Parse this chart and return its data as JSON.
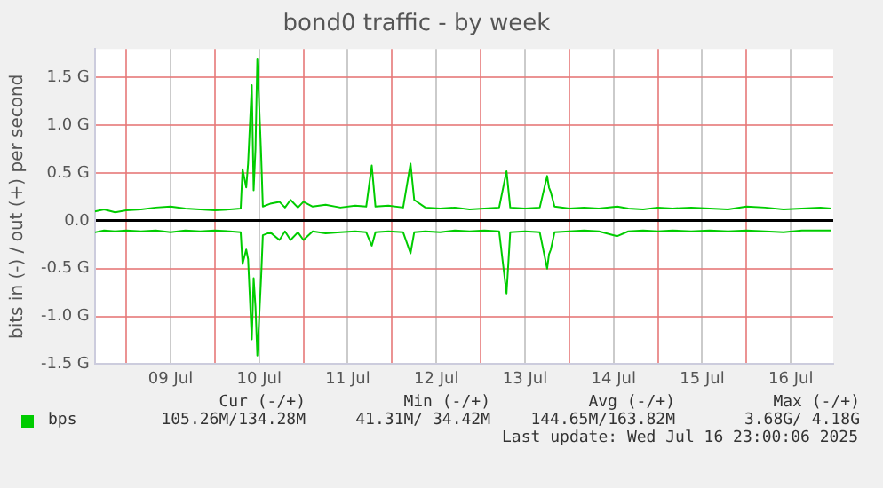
{
  "chart_data": {
    "type": "line",
    "title": "bond0 traffic - by week",
    "ylabel": "bits in (-) / out (+) per second",
    "x": [
      "2025-07-08T15:30",
      "2025-07-08T18:00",
      "2025-07-08T21:00",
      "2025-07-09T00:00",
      "2025-07-09T04:00",
      "2025-07-09T08:00",
      "2025-07-09T12:00",
      "2025-07-09T16:00",
      "2025-07-09T20:00",
      "2025-07-10T00:00",
      "2025-07-10T04:00",
      "2025-07-10T07:00",
      "2025-07-10T07:30",
      "2025-07-10T08:30",
      "2025-07-10T09:00",
      "2025-07-10T10:00",
      "2025-07-10T10:30",
      "2025-07-10T11:00",
      "2025-07-10T11:30",
      "2025-07-10T12:30",
      "2025-07-10T13:00",
      "2025-07-10T15:00",
      "2025-07-10T17:30",
      "2025-07-10T19:00",
      "2025-07-10T20:30",
      "2025-07-10T22:30",
      "2025-07-11T00:00",
      "2025-07-11T02:30",
      "2025-07-11T06:00",
      "2025-07-11T10:00",
      "2025-07-11T14:00",
      "2025-07-11T17:00",
      "2025-07-11T18:30",
      "2025-07-11T19:30",
      "2025-07-11T23:00",
      "2025-07-12T03:00",
      "2025-07-12T05:00",
      "2025-07-12T06:00",
      "2025-07-12T09:00",
      "2025-07-12T13:00",
      "2025-07-12T17:00",
      "2025-07-12T21:00",
      "2025-07-13T01:00",
      "2025-07-13T05:00",
      "2025-07-13T07:00",
      "2025-07-13T08:00",
      "2025-07-13T12:00",
      "2025-07-13T16:00",
      "2025-07-13T18:00",
      "2025-07-13T18:30",
      "2025-07-13T19:00",
      "2025-07-13T20:00",
      "2025-07-14T00:00",
      "2025-07-14T04:00",
      "2025-07-14T08:00",
      "2025-07-14T13:00",
      "2025-07-14T16:00",
      "2025-07-14T20:00",
      "2025-07-15T00:00",
      "2025-07-15T04:00",
      "2025-07-15T09:00",
      "2025-07-15T14:00",
      "2025-07-15T19:00",
      "2025-07-16T00:00",
      "2025-07-16T05:00",
      "2025-07-16T10:00",
      "2025-07-16T15:00",
      "2025-07-16T20:00",
      "2025-07-16T23:00"
    ],
    "series": [
      {
        "name": "bps",
        "color": "#00cc00",
        "values": [
          0.1,
          0.12,
          0.09,
          0.11,
          0.12,
          0.14,
          0.15,
          0.13,
          0.12,
          0.11,
          0.12,
          0.13,
          0.54,
          0.35,
          0.6,
          1.42,
          0.32,
          0.75,
          1.7,
          0.73,
          0.15,
          0.18,
          0.2,
          0.14,
          0.22,
          0.14,
          0.2,
          0.15,
          0.17,
          0.14,
          0.16,
          0.15,
          0.58,
          0.15,
          0.16,
          0.14,
          0.6,
          0.22,
          0.14,
          0.13,
          0.14,
          0.12,
          0.13,
          0.14,
          0.52,
          0.14,
          0.13,
          0.14,
          0.47,
          0.35,
          0.3,
          0.15,
          0.13,
          0.14,
          0.13,
          0.15,
          0.13,
          0.12,
          0.14,
          0.13,
          0.14,
          0.13,
          0.12,
          0.15,
          0.14,
          0.12,
          0.13,
          0.14,
          0.13
        ]
      },
      {
        "color": "#00cc00",
        "values": [
          -0.12,
          -0.1,
          -0.11,
          -0.1,
          -0.11,
          -0.1,
          -0.12,
          -0.1,
          -0.11,
          -0.1,
          -0.11,
          -0.12,
          -0.45,
          -0.3,
          -0.4,
          -1.24,
          -0.6,
          -0.9,
          -1.41,
          -0.62,
          -0.15,
          -0.12,
          -0.2,
          -0.11,
          -0.2,
          -0.12,
          -0.2,
          -0.11,
          -0.13,
          -0.12,
          -0.11,
          -0.12,
          -0.26,
          -0.12,
          -0.11,
          -0.12,
          -0.34,
          -0.12,
          -0.11,
          -0.12,
          -0.1,
          -0.11,
          -0.1,
          -0.11,
          -0.76,
          -0.12,
          -0.11,
          -0.12,
          -0.5,
          -0.35,
          -0.3,
          -0.12,
          -0.11,
          -0.1,
          -0.11,
          -0.16,
          -0.11,
          -0.1,
          -0.11,
          -0.1,
          -0.11,
          -0.1,
          -0.11,
          -0.1,
          -0.11,
          -0.12,
          -0.1,
          -0.1,
          -0.1
        ]
      }
    ],
    "xlim": [
      "2025-07-08T15:30",
      "2025-07-16T23:30"
    ],
    "xticks": [
      {
        "value": "2025-07-09T00:00",
        "label": null
      },
      {
        "value": "2025-07-09T12:00",
        "label": "09 Jul"
      },
      {
        "value": "2025-07-10T00:00",
        "label": null
      },
      {
        "value": "2025-07-10T12:00",
        "label": "10 Jul"
      },
      {
        "value": "2025-07-11T00:00",
        "label": null
      },
      {
        "value": "2025-07-11T12:00",
        "label": "11 Jul"
      },
      {
        "value": "2025-07-12T00:00",
        "label": null
      },
      {
        "value": "2025-07-12T12:00",
        "label": "12 Jul"
      },
      {
        "value": "2025-07-13T00:00",
        "label": null
      },
      {
        "value": "2025-07-13T12:00",
        "label": "13 Jul"
      },
      {
        "value": "2025-07-14T00:00",
        "label": null
      },
      {
        "value": "2025-07-14T12:00",
        "label": "14 Jul"
      },
      {
        "value": "2025-07-15T00:00",
        "label": null
      },
      {
        "value": "2025-07-15T12:00",
        "label": "15 Jul"
      },
      {
        "value": "2025-07-16T00:00",
        "label": null
      },
      {
        "value": "2025-07-16T12:00",
        "label": "16 Jul"
      }
    ],
    "ylim": [
      -1.5,
      1.8
    ],
    "yticks": [
      {
        "value": -1.5,
        "label": "-1.5 G"
      },
      {
        "value": -1,
        "label": "-1.0 G"
      },
      {
        "value": -0.5,
        "label": "-0.5 G"
      },
      {
        "value": 0,
        "label": "0.0"
      },
      {
        "value": 0.5,
        "label": "0.5 G"
      },
      {
        "value": 1,
        "label": "1.0 G"
      },
      {
        "value": 1.5,
        "label": "1.5 G"
      }
    ],
    "grid": true,
    "legend": "bottom",
    "marker": "none",
    "line_style": "solid",
    "annotations": [
      "Cur (-/+)",
      "Min (-/+)",
      "Avg (-/+)",
      "Max (-/+)",
      "105.26M/134.28M",
      "41.31M/ 34.42M",
      "144.65M/163.82M",
      "3.68G/ 4.18G",
      "Last update: Wed Jul 16 23:00:06 2025"
    ]
  }
}
